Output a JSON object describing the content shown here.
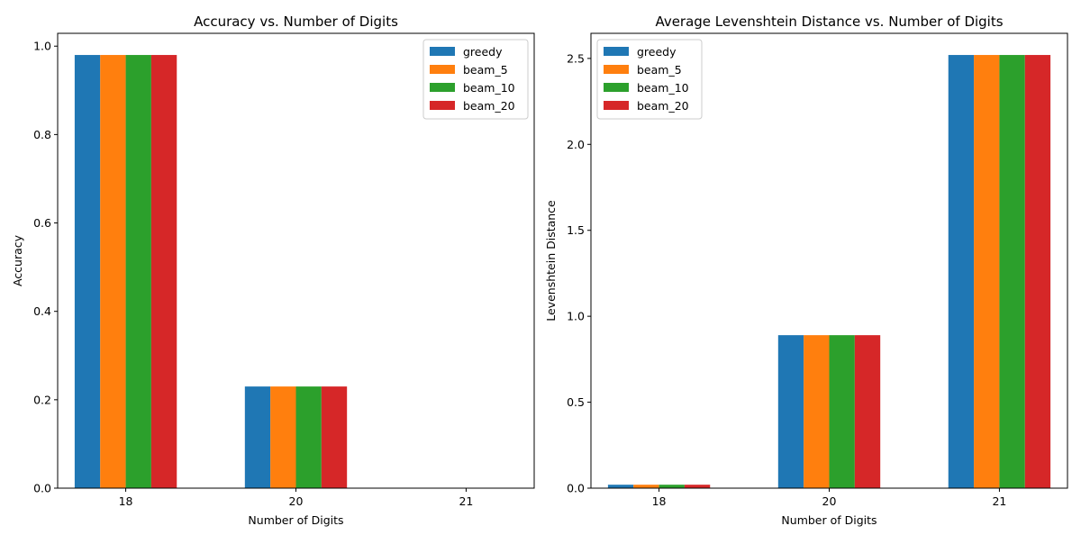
{
  "chart_data": [
    {
      "type": "bar",
      "title": "Accuracy vs. Number of Digits",
      "xlabel": "Number of Digits",
      "ylabel": "Accuracy",
      "categories": [
        "18",
        "20",
        "21"
      ],
      "ylim": [
        0,
        1.029
      ],
      "yticks": [
        0.0,
        0.2,
        0.4,
        0.6,
        0.8,
        1.0
      ],
      "ytick_labels": [
        "0.0",
        "0.2",
        "0.4",
        "0.6",
        "0.8",
        "1.0"
      ],
      "legend_position": "top-right",
      "grid": false,
      "series": [
        {
          "name": "greedy",
          "color": "#1f77b4",
          "values": [
            0.98,
            0.23,
            0.0
          ]
        },
        {
          "name": "beam_5",
          "color": "#ff7f0e",
          "values": [
            0.98,
            0.23,
            0.0
          ]
        },
        {
          "name": "beam_10",
          "color": "#2ca02c",
          "values": [
            0.98,
            0.23,
            0.0
          ]
        },
        {
          "name": "beam_20",
          "color": "#d62728",
          "values": [
            0.98,
            0.23,
            0.0
          ]
        }
      ]
    },
    {
      "type": "bar",
      "title": "Average Levenshtein Distance vs. Number of Digits",
      "xlabel": "Number of Digits",
      "ylabel": "Levenshtein Distance",
      "categories": [
        "18",
        "20",
        "21"
      ],
      "ylim": [
        0,
        2.646
      ],
      "yticks": [
        0.0,
        0.5,
        1.0,
        1.5,
        2.0,
        2.5
      ],
      "ytick_labels": [
        "0.0",
        "0.5",
        "1.0",
        "1.5",
        "2.0",
        "2.5"
      ],
      "legend_position": "top-left",
      "grid": false,
      "series": [
        {
          "name": "greedy",
          "color": "#1f77b4",
          "values": [
            0.02,
            0.89,
            2.52
          ]
        },
        {
          "name": "beam_5",
          "color": "#ff7f0e",
          "values": [
            0.02,
            0.89,
            2.52
          ]
        },
        {
          "name": "beam_10",
          "color": "#2ca02c",
          "values": [
            0.02,
            0.89,
            2.52
          ]
        },
        {
          "name": "beam_20",
          "color": "#d62728",
          "values": [
            0.02,
            0.89,
            2.52
          ]
        }
      ]
    }
  ]
}
